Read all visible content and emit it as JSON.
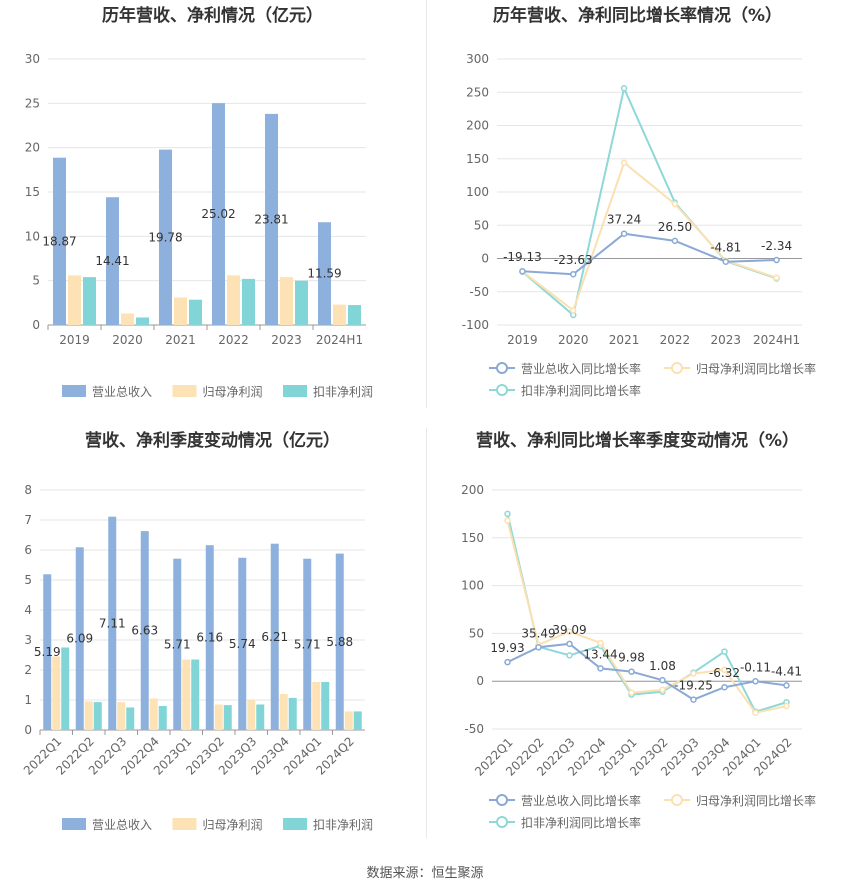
{
  "source": "数据来源：恒生聚源",
  "colors": {
    "revenue": "#8eb0dd",
    "net_profit": "#fde2b6",
    "deducted_profit": "#82d5d6",
    "revenue_line": "#8aa9d6",
    "net_line": "#fbe0b0",
    "deducted_line": "#8ed8d8",
    "grid": "#e6e6e6",
    "axis": "#999999"
  },
  "chart_data": [
    {
      "type": "bar",
      "title": "历年营收、净利情况（亿元）",
      "categories": [
        "2019",
        "2020",
        "2021",
        "2022",
        "2023",
        "2024H1"
      ],
      "series": [
        {
          "name": "营业总收入",
          "values": [
            18.87,
            14.41,
            19.78,
            25.02,
            23.81,
            11.59
          ]
        },
        {
          "name": "归母净利润",
          "values": [
            5.6,
            1.3,
            3.1,
            5.6,
            5.4,
            2.3
          ]
        },
        {
          "name": "扣非净利润",
          "values": [
            5.4,
            0.85,
            2.85,
            5.2,
            5.0,
            2.25
          ]
        }
      ],
      "data_labels": [
        "18.87",
        "14.41",
        "19.78",
        "25.02",
        "23.81",
        "11.59"
      ],
      "ylim": [
        0,
        30
      ],
      "yticks": [
        "0",
        "5",
        "10",
        "15",
        "20",
        "25",
        "30"
      ],
      "legend_position": "bottom"
    },
    {
      "type": "line",
      "title": "历年营收、净利同比增长率情况（%）",
      "categories": [
        "2019",
        "2020",
        "2021",
        "2022",
        "2023",
        "2024H1"
      ],
      "series": [
        {
          "name": "营业总收入同比增长率",
          "values": [
            -19.13,
            -23.63,
            37.24,
            26.5,
            -4.81,
            -2.34
          ]
        },
        {
          "name": "归母净利润同比增长率",
          "values": [
            -19.5,
            -78,
            144,
            82,
            -3,
            -29
          ]
        },
        {
          "name": "扣非净利润同比增长率",
          "values": [
            -20,
            -85,
            256,
            84,
            -4,
            -30
          ]
        }
      ],
      "data_labels": [
        "-19.13",
        "-23.63",
        "37.24",
        "26.50",
        "-4.81",
        "-2.34"
      ],
      "ylim": [
        -100,
        300
      ],
      "yticks": [
        "-100",
        "-50",
        "0",
        "50",
        "100",
        "150",
        "200",
        "250",
        "300"
      ],
      "legend_position": "bottom"
    },
    {
      "type": "bar",
      "title": "营收、净利季度变动情况（亿元）",
      "categories": [
        "2022Q1",
        "2022Q2",
        "2022Q3",
        "2022Q4",
        "2023Q1",
        "2023Q2",
        "2023Q3",
        "2023Q4",
        "2024Q1",
        "2024Q2"
      ],
      "series": [
        {
          "name": "营业总收入",
          "values": [
            5.19,
            6.09,
            7.11,
            6.63,
            5.71,
            6.16,
            5.74,
            6.21,
            5.71,
            5.88
          ]
        },
        {
          "name": "归母净利润",
          "values": [
            2.45,
            0.95,
            0.93,
            1.05,
            2.35,
            0.85,
            1.0,
            1.2,
            1.6,
            0.62
          ]
        },
        {
          "name": "扣非净利润",
          "values": [
            2.75,
            0.93,
            0.75,
            0.8,
            2.35,
            0.83,
            0.85,
            1.07,
            1.6,
            0.62
          ]
        }
      ],
      "data_labels": [
        "5.19",
        "6.09",
        "7.11",
        "6.63",
        "5.71",
        "6.16",
        "5.74",
        "6.21",
        "5.71",
        "5.88"
      ],
      "ylim": [
        0,
        8
      ],
      "yticks": [
        "0",
        "1",
        "2",
        "3",
        "4",
        "5",
        "6",
        "7",
        "8"
      ],
      "legend_position": "bottom"
    },
    {
      "type": "line",
      "title": "营收、净利同比增长率季度变动情况（%）",
      "categories": [
        "2022Q1",
        "2022Q2",
        "2022Q3",
        "2022Q4",
        "2023Q1",
        "2023Q2",
        "2023Q3",
        "2023Q4",
        "2024Q1",
        "2024Q2"
      ],
      "series": [
        {
          "name": "营业总收入同比增长率",
          "values": [
            19.93,
            35.49,
            39.09,
            13.44,
            9.98,
            1.08,
            -19.25,
            -6.32,
            -0.11,
            -4.41
          ]
        },
        {
          "name": "归母净利润同比增长率",
          "values": [
            168,
            38,
            52,
            40,
            -12,
            -9,
            8,
            12,
            -33,
            -26
          ]
        },
        {
          "name": "扣非净利润同比增长率",
          "values": [
            175,
            36,
            27,
            37,
            -14,
            -11,
            9,
            31,
            -32,
            -22
          ]
        }
      ],
      "data_labels": [
        "19.93",
        "35.49",
        "39.09",
        "13.44",
        "9.98",
        "1.08",
        "-19.25",
        "-6.32",
        "-0.11",
        "-4.41"
      ],
      "ylim": [
        -50,
        200
      ],
      "yticks": [
        "-50",
        "0",
        "50",
        "100",
        "150",
        "200"
      ],
      "legend_position": "bottom"
    }
  ]
}
